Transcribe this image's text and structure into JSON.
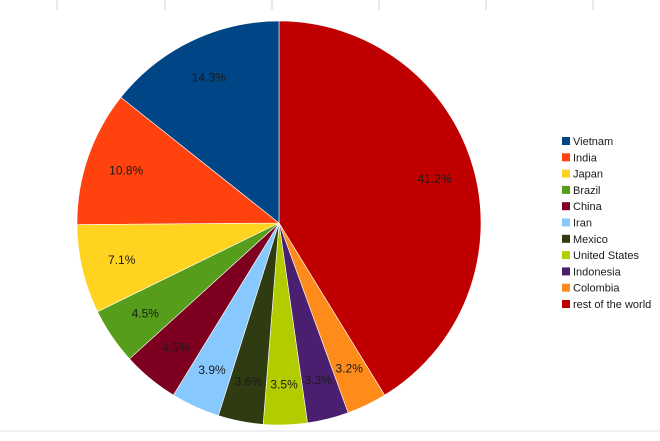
{
  "chart_data": {
    "type": "pie",
    "title": "",
    "slices": [
      {
        "label": "rest of the world",
        "value": 41.2,
        "value_label": "41.2%",
        "color": "#c00000"
      },
      {
        "label": "Colombia",
        "value": 3.2,
        "value_label": "3.2%",
        "color": "#ff8c1a"
      },
      {
        "label": "Indonesia",
        "value": 3.3,
        "value_label": "3.3%",
        "color": "#4b1f6f"
      },
      {
        "label": "United States",
        "value": 3.5,
        "value_label": "3.5%",
        "color": "#b3cc00"
      },
      {
        "label": "Mexico",
        "value": 3.6,
        "value_label": "3.6%",
        "color": "#2f3b10"
      },
      {
        "label": "Iran",
        "value": 3.9,
        "value_label": "3.9%",
        "color": "#87c8ff"
      },
      {
        "label": "China",
        "value": 4.5,
        "value_label": "4.5%",
        "color": "#7e0021"
      },
      {
        "label": "Brazil",
        "value": 4.5,
        "value_label": "4.5%",
        "color": "#579d1c"
      },
      {
        "label": "Japan",
        "value": 7.1,
        "value_label": "7.1%",
        "color": "#ffd320"
      },
      {
        "label": "India",
        "value": 10.8,
        "value_label": "10.8%",
        "color": "#ff420e"
      },
      {
        "label": "Vietnam",
        "value": 14.3,
        "value_label": "14.3%",
        "color": "#004586"
      }
    ],
    "legend": {
      "position": "right",
      "order": [
        "Vietnam",
        "India",
        "Japan",
        "Brazil",
        "China",
        "Iran",
        "Mexico",
        "United States",
        "Indonesia",
        "Colombia",
        "rest of the world"
      ]
    },
    "background_grid": true
  }
}
